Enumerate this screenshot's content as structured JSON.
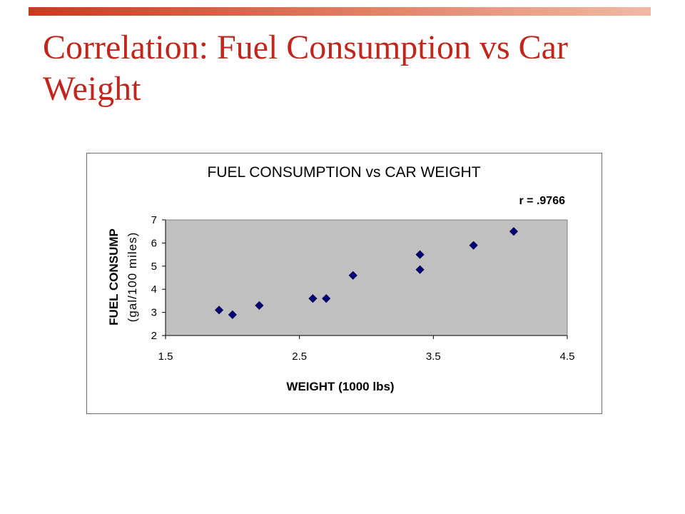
{
  "slide": {
    "title": "Correlation: Fuel Consumption vs Car Weight",
    "accent_color": "#c93a1e",
    "title_color": "#c0261c"
  },
  "chart_data": {
    "type": "scatter",
    "title": "FUEL CONSUMPTION vs CAR WEIGHT",
    "xlabel": "WEIGHT (1000 lbs)",
    "ylabel_line1": "FUEL CONSUMP",
    "ylabel_line2": "(gal/100 miles)",
    "annotation": "r = .9766",
    "xlim": [
      1.5,
      4.5
    ],
    "ylim": [
      2,
      7
    ],
    "xticks": [
      "1.5",
      "2.5",
      "3.5",
      "4.5"
    ],
    "yticks": [
      "2",
      "3",
      "4",
      "5",
      "6",
      "7"
    ],
    "grid": false,
    "legend": "none",
    "plot_bg": "#c0c0c0",
    "marker_color": "#00007a",
    "points": [
      {
        "x": 1.9,
        "y": 3.1
      },
      {
        "x": 2.0,
        "y": 2.9
      },
      {
        "x": 2.2,
        "y": 3.3
      },
      {
        "x": 2.6,
        "y": 3.6
      },
      {
        "x": 2.7,
        "y": 3.6
      },
      {
        "x": 2.9,
        "y": 4.6
      },
      {
        "x": 3.4,
        "y": 5.5
      },
      {
        "x": 3.4,
        "y": 4.85
      },
      {
        "x": 3.8,
        "y": 5.9
      },
      {
        "x": 4.1,
        "y": 6.5
      }
    ]
  }
}
